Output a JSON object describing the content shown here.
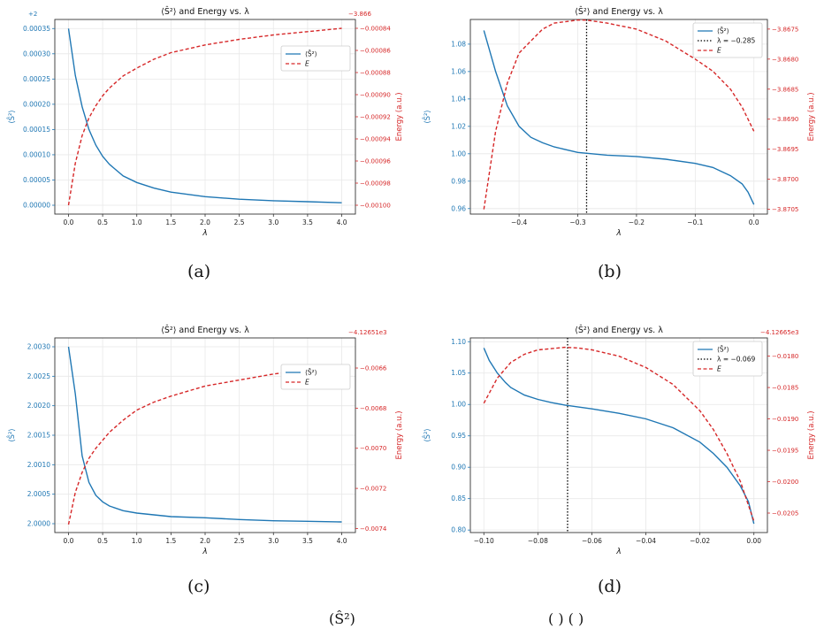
{
  "colors": {
    "blue": "#1f77b4",
    "red": "#d62728",
    "grid": "#e8e8e8",
    "axis": "#333333"
  },
  "captions": [
    "(a)",
    "(b)",
    "(c)",
    "(d)"
  ],
  "bottom_caption": {
    "part1": "(Ŝ²)",
    "part2": "( )  ( )"
  },
  "chart_data": [
    {
      "type": "line",
      "title": "⟨Ŝ²⟩ and Energy vs. λ",
      "xlabel": "λ",
      "ylabel_left": "⟨Ŝ²⟩",
      "ylabel_right": "Energy (a.u.)",
      "offset_left": "+2",
      "offset_right": "−3.866",
      "xlim": [
        -0.2,
        4.2
      ],
      "x_ticks": [
        0.0,
        0.5,
        1.0,
        1.5,
        2.0,
        2.5,
        3.0,
        3.5,
        4.0
      ],
      "x_tick_labels": [
        "0.0",
        "0.5",
        "1.0",
        "1.5",
        "2.0",
        "2.5",
        "3.0",
        "3.5",
        "4.0"
      ],
      "ylim_left": [
        -1.75e-05,
        0.000368
      ],
      "y_ticks_left": [
        0,
        5e-05,
        0.0001,
        0.00015,
        0.0002,
        0.00025,
        0.0003,
        0.00035
      ],
      "y_tick_labels_left": [
        "0.00000",
        "0.00005",
        "0.00010",
        "0.00015",
        "0.00020",
        "0.00025",
        "0.00030",
        "0.00035"
      ],
      "ylim_right": [
        -0.001008,
        -0.000832
      ],
      "y_ticks_right": [
        -0.001,
        -0.00098,
        -0.00096,
        -0.00094,
        -0.00092,
        -0.0009,
        -0.00088,
        -0.00086,
        -0.00084
      ],
      "y_tick_labels_right": [
        "−0.00100",
        "−0.00098",
        "−0.00096",
        "−0.00094",
        "−0.00092",
        "−0.00090",
        "−0.00088",
        "−0.00086",
        "−0.00084"
      ],
      "series": [
        {
          "name": "⟨Ŝ²⟩",
          "axis": "left",
          "style": "solid",
          "x": [
            0,
            0.1,
            0.2,
            0.3,
            0.4,
            0.5,
            0.6,
            0.8,
            1.0,
            1.25,
            1.5,
            2.0,
            2.5,
            3.0,
            3.5,
            4.0
          ],
          "y": [
            0.00035,
            0.000257,
            0.000195,
            0.00015,
            0.000119,
            9.7e-05,
            8.1e-05,
            5.8e-05,
            4.5e-05,
            3.4e-05,
            2.6e-05,
            1.7e-05,
            1.2e-05,
            9e-06,
            7e-06,
            5e-06
          ]
        },
        {
          "name": "E",
          "axis": "right",
          "style": "dashed",
          "x": [
            0,
            0.1,
            0.2,
            0.3,
            0.4,
            0.5,
            0.6,
            0.8,
            1.0,
            1.25,
            1.5,
            2.0,
            2.5,
            3.0,
            3.5,
            4.0
          ],
          "y": [
            -0.001,
            -0.000962,
            -0.000937,
            -0.000921,
            -0.00091,
            -0.000901,
            -0.000894,
            -0.000883,
            -0.000876,
            -0.000868,
            -0.000862,
            -0.000855,
            -0.00085,
            -0.000846,
            -0.000843,
            -0.00084
          ]
        }
      ],
      "legend": "right"
    },
    {
      "type": "line",
      "title": "⟨Ŝ²⟩ and Energy vs. λ",
      "xlabel": "λ",
      "ylabel_left": "⟨Ŝ²⟩",
      "ylabel_right": "Energy (a.u.)",
      "xlim": [
        -0.483,
        0.023
      ],
      "x_ticks": [
        -0.4,
        -0.3,
        -0.2,
        -0.1,
        0.0
      ],
      "x_tick_labels": [
        "−0.4",
        "−0.3",
        "−0.2",
        "−0.1",
        "0.0"
      ],
      "ylim_left": [
        0.956,
        1.098
      ],
      "y_ticks_left": [
        0.96,
        0.98,
        1.0,
        1.02,
        1.04,
        1.06,
        1.08
      ],
      "y_tick_labels_left": [
        "0.96",
        "0.98",
        "1.00",
        "1.02",
        "1.04",
        "1.06",
        "1.08"
      ],
      "ylim_right": [
        -3.87058,
        -3.86734
      ],
      "y_ticks_right": [
        -3.8705,
        -3.87,
        -3.8695,
        -3.869,
        -3.8685,
        -3.868,
        -3.8675
      ],
      "y_tick_labels_right": [
        "−3.8705",
        "−3.8700",
        "−3.8695",
        "−3.8690",
        "−3.8685",
        "−3.8680",
        "−3.8675"
      ],
      "vline": {
        "x": -0.285,
        "label": "λ = −0.285"
      },
      "series": [
        {
          "name": "⟨Ŝ²⟩",
          "axis": "left",
          "style": "solid",
          "x": [
            -0.46,
            -0.44,
            -0.42,
            -0.4,
            -0.38,
            -0.36,
            -0.34,
            -0.3,
            -0.25,
            -0.2,
            -0.15,
            -0.1,
            -0.07,
            -0.04,
            -0.02,
            -0.01,
            0.0
          ],
          "y": [
            1.09,
            1.06,
            1.035,
            1.02,
            1.012,
            1.008,
            1.005,
            1.001,
            0.999,
            0.998,
            0.996,
            0.993,
            0.99,
            0.984,
            0.978,
            0.972,
            0.963
          ]
        },
        {
          "name": "E",
          "axis": "right",
          "style": "dashed",
          "x": [
            -0.46,
            -0.44,
            -0.42,
            -0.4,
            -0.38,
            -0.36,
            -0.34,
            -0.3,
            -0.285,
            -0.25,
            -0.2,
            -0.15,
            -0.1,
            -0.07,
            -0.04,
            -0.02,
            0.0
          ],
          "y": [
            -3.8705,
            -3.8692,
            -3.8684,
            -3.8679,
            -3.8677,
            -3.8675,
            -3.8674,
            -3.86735,
            -3.86735,
            -3.8674,
            -3.8675,
            -3.8677,
            -3.868,
            -3.8682,
            -3.8685,
            -3.8688,
            -3.8692
          ]
        }
      ],
      "legend": "top-right"
    },
    {
      "type": "line",
      "title": "⟨Ŝ²⟩ and Energy vs. λ",
      "xlabel": "λ",
      "ylabel_left": "⟨Ŝ²⟩",
      "ylabel_right": "Energy (a.u.)",
      "offset_right": "−4.12651e3",
      "xlim": [
        -0.2,
        4.2
      ],
      "x_ticks": [
        0.0,
        0.5,
        1.0,
        1.5,
        2.0,
        2.5,
        3.0,
        3.5,
        4.0
      ],
      "x_tick_labels": [
        "0.0",
        "0.5",
        "1.0",
        "1.5",
        "2.0",
        "2.5",
        "3.0",
        "3.5",
        "4.0"
      ],
      "ylim_left": [
        1.99985,
        2.00315
      ],
      "y_ticks_left": [
        2.0,
        2.0005,
        2.001,
        2.0015,
        2.002,
        2.0025,
        2.003
      ],
      "y_tick_labels_left": [
        "2.0000",
        "2.0005",
        "2.0010",
        "2.0015",
        "2.0020",
        "2.0025",
        "2.0030"
      ],
      "ylim_right": [
        -0.00742,
        -0.00645
      ],
      "y_ticks_right": [
        -0.0074,
        -0.0072,
        -0.007,
        -0.0068,
        -0.0066
      ],
      "y_tick_labels_right": [
        "−0.0074",
        "−0.0072",
        "−0.0070",
        "−0.0068",
        "−0.0066"
      ],
      "series": [
        {
          "name": "⟨Ŝ²⟩",
          "axis": "left",
          "style": "solid",
          "x": [
            0,
            0.1,
            0.2,
            0.3,
            0.4,
            0.5,
            0.6,
            0.8,
            1.0,
            1.25,
            1.5,
            2.0,
            2.5,
            3.0,
            3.5,
            4.0
          ],
          "y": [
            2.003,
            2.0022,
            2.00115,
            2.0007,
            2.00048,
            2.00037,
            2.0003,
            2.00022,
            2.00018,
            2.00015,
            2.00012,
            2.0001,
            2.00007,
            2.00005,
            2.00004,
            2.00003
          ]
        },
        {
          "name": "E",
          "axis": "right",
          "style": "dashed",
          "x": [
            0,
            0.1,
            0.2,
            0.3,
            0.4,
            0.5,
            0.6,
            0.8,
            1.0,
            1.25,
            1.5,
            2.0,
            2.5,
            3.0,
            3.5,
            4.0
          ],
          "y": [
            -0.00738,
            -0.00722,
            -0.00712,
            -0.00705,
            -0.007,
            -0.00696,
            -0.00692,
            -0.00686,
            -0.00681,
            -0.00677,
            -0.00674,
            -0.00669,
            -0.00666,
            -0.00663,
            -0.00661,
            -0.00659
          ]
        }
      ],
      "legend": "right"
    },
    {
      "type": "line",
      "title": "⟨Ŝ²⟩ and Energy vs. λ",
      "xlabel": "λ",
      "ylabel_left": "⟨Ŝ²⟩",
      "ylabel_right": "Energy (a.u.)",
      "offset_right": "−4.12665e3",
      "xlim": [
        -0.105,
        0.005
      ],
      "x_ticks": [
        -0.1,
        -0.08,
        -0.06,
        -0.04,
        -0.02,
        0.0
      ],
      "x_tick_labels": [
        "−0.10",
        "−0.08",
        "−0.06",
        "−0.04",
        "−0.02",
        "0.00"
      ],
      "ylim_left": [
        0.796,
        1.106
      ],
      "y_ticks_left": [
        0.8,
        0.85,
        0.9,
        0.95,
        1.0,
        1.05,
        1.1
      ],
      "y_tick_labels_left": [
        "0.80",
        "0.85",
        "0.90",
        "0.95",
        "1.00",
        "1.05",
        "1.10"
      ],
      "ylim_right": [
        -0.02081,
        -0.01771
      ],
      "y_ticks_right": [
        -0.0205,
        -0.02,
        -0.0195,
        -0.019,
        -0.0185,
        -0.018
      ],
      "y_tick_labels_right": [
        "−0.0205",
        "−0.0200",
        "−0.0195",
        "−0.0190",
        "−0.0185",
        "−0.0180"
      ],
      "vline": {
        "x": -0.069,
        "label": "λ = −0.069"
      },
      "series": [
        {
          "name": "⟨Ŝ²⟩",
          "axis": "left",
          "style": "solid",
          "x": [
            -0.1,
            -0.098,
            -0.095,
            -0.092,
            -0.09,
            -0.085,
            -0.08,
            -0.075,
            -0.07,
            -0.06,
            -0.05,
            -0.04,
            -0.03,
            -0.02,
            -0.015,
            -0.01,
            -0.005,
            -0.002,
            0.0
          ],
          "y": [
            1.09,
            1.07,
            1.05,
            1.035,
            1.027,
            1.015,
            1.008,
            1.003,
            0.999,
            0.993,
            0.986,
            0.977,
            0.963,
            0.94,
            0.922,
            0.9,
            0.87,
            0.845,
            0.81
          ]
        },
        {
          "name": "E",
          "axis": "right",
          "style": "dashed",
          "x": [
            -0.1,
            -0.095,
            -0.09,
            -0.085,
            -0.08,
            -0.075,
            -0.07,
            -0.065,
            -0.06,
            -0.05,
            -0.04,
            -0.03,
            -0.02,
            -0.015,
            -0.01,
            -0.005,
            0.0
          ],
          "y": [
            -0.01875,
            -0.01835,
            -0.0181,
            -0.01797,
            -0.0179,
            -0.01788,
            -0.01786,
            -0.01787,
            -0.0179,
            -0.018,
            -0.01818,
            -0.01845,
            -0.01887,
            -0.01917,
            -0.01955,
            -0.02,
            -0.02063
          ]
        }
      ],
      "legend": "top-right"
    }
  ]
}
